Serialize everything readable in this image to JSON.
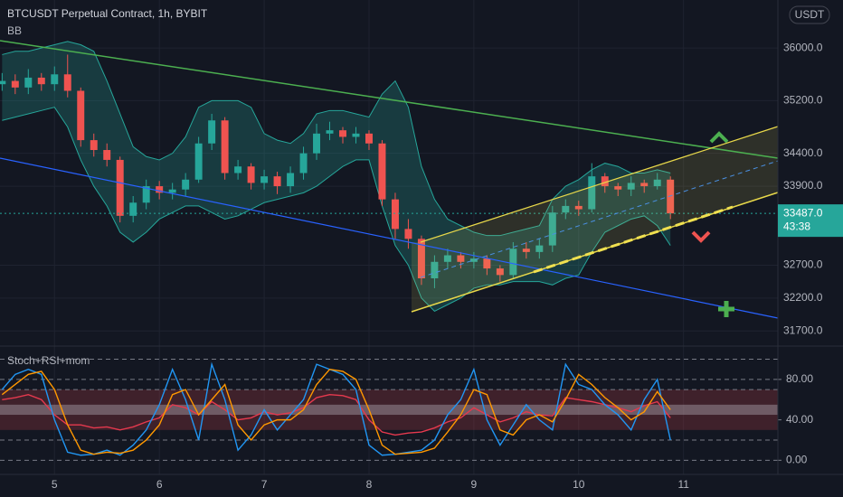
{
  "header": {
    "title": "BTCUSDT Perpetual Contract, 1h, BYBIT",
    "indicator": "BB",
    "currency": "USDT"
  },
  "chart_data": [
    {
      "type": "candlestick",
      "x": [
        4.5,
        4.625,
        4.75,
        4.875,
        5.0,
        5.125,
        5.25,
        5.375,
        5.5,
        5.625,
        5.75,
        5.875,
        6.0,
        6.125,
        6.25,
        6.375,
        6.5,
        6.625,
        6.75,
        6.875,
        7.0,
        7.125,
        7.25,
        7.375,
        7.5,
        7.625,
        7.75,
        7.875,
        8.0,
        8.125,
        8.25,
        8.375,
        8.5,
        8.625,
        8.75,
        8.875,
        9.0,
        9.125,
        9.25,
        9.375,
        9.5,
        9.625,
        9.75,
        9.875,
        10.0,
        10.125,
        10.25,
        10.375,
        10.5,
        10.625,
        10.75,
        10.875
      ],
      "open": [
        35450,
        35500,
        35400,
        35550,
        35450,
        35600,
        35350,
        34600,
        34450,
        34300,
        33450,
        33650,
        33900,
        33800,
        33850,
        34000,
        34550,
        34900,
        34100,
        34200,
        33950,
        34050,
        33900,
        34100,
        34400,
        34700,
        34750,
        34650,
        34700,
        34550,
        33700,
        33250,
        33100,
        32500,
        32750,
        32850,
        32750,
        32800,
        32650,
        32550,
        32950,
        32900,
        33000,
        33500,
        33600,
        33550,
        34050,
        33900,
        33850,
        33950,
        33900,
        34000
      ],
      "high": [
        35620,
        35600,
        35680,
        35620,
        35720,
        35900,
        35400,
        34700,
        34550,
        34350,
        33750,
        34000,
        33980,
        33950,
        34100,
        34650,
        35000,
        34950,
        34300,
        34250,
        34150,
        34120,
        34200,
        34500,
        34850,
        34880,
        34800,
        34800,
        34750,
        34600,
        33800,
        33400,
        33150,
        32850,
        32950,
        32900,
        32900,
        32850,
        32700,
        33050,
        33050,
        33100,
        33600,
        33700,
        33680,
        34250,
        34100,
        33950,
        34050,
        34000,
        34100,
        34050
      ],
      "low": [
        35350,
        35300,
        35300,
        35350,
        35350,
        35250,
        34500,
        34350,
        34200,
        33350,
        33350,
        33550,
        33700,
        33700,
        33750,
        33950,
        34450,
        34000,
        34000,
        33850,
        33850,
        33780,
        33800,
        34000,
        34300,
        34600,
        34550,
        34550,
        34450,
        33600,
        33100,
        32950,
        32400,
        32350,
        32650,
        32650,
        32650,
        32550,
        32450,
        32500,
        32800,
        32800,
        32900,
        33400,
        33450,
        33500,
        33800,
        33750,
        33750,
        33800,
        33850,
        33400
      ],
      "close": [
        35500,
        35400,
        35550,
        35450,
        35600,
        35350,
        34600,
        34450,
        34300,
        33450,
        33650,
        33900,
        33800,
        33850,
        34000,
        34550,
        34900,
        34100,
        34200,
        33950,
        34050,
        33900,
        34100,
        34400,
        34700,
        34750,
        34650,
        34700,
        34550,
        33700,
        33250,
        33100,
        32500,
        32750,
        32850,
        32750,
        32800,
        32650,
        32550,
        32950,
        32900,
        33000,
        33500,
        33600,
        33550,
        34050,
        33900,
        33850,
        33950,
        33900,
        34000,
        33487
      ],
      "bb_upper": [
        35900,
        35950,
        35950,
        36000,
        36050,
        36100,
        36050,
        35950,
        35500,
        35000,
        34500,
        34350,
        34300,
        34400,
        34650,
        35100,
        35200,
        35200,
        35200,
        35100,
        34700,
        34600,
        34550,
        34700,
        35000,
        35050,
        35050,
        35000,
        34950,
        35300,
        35500,
        35100,
        34200,
        33700,
        33400,
        33300,
        33200,
        33150,
        33150,
        33200,
        33250,
        33300,
        33700,
        33900,
        34000,
        34150,
        34250,
        34200,
        34100,
        34100,
        34150,
        34100
      ],
      "bb_lower": [
        34900,
        34950,
        35000,
        35050,
        35100,
        34800,
        34300,
        33900,
        33600,
        33200,
        33050,
        33200,
        33400,
        33500,
        33600,
        33600,
        33500,
        33400,
        33450,
        33550,
        33650,
        33700,
        33750,
        33800,
        33900,
        34050,
        34200,
        34300,
        34300,
        33600,
        33000,
        32700,
        32200,
        32000,
        32100,
        32200,
        32350,
        32400,
        32400,
        32450,
        32450,
        32450,
        32400,
        32500,
        32550,
        32900,
        33200,
        33300,
        33400,
        33450,
        33300,
        33000
      ],
      "up_color": "#26a69a",
      "down_color": "#ef5350",
      "band_color": "#26a69a",
      "last_price": 33487,
      "last_price_label": "33487.0",
      "countdown": "43:38",
      "xlim": [
        4.48,
        11.9
      ],
      "xticks": [
        5,
        6,
        7,
        8,
        9,
        10,
        11
      ],
      "ylim": [
        31470,
        36730
      ],
      "yticks": [
        {
          "value": 31700,
          "label": "31700.0"
        },
        {
          "value": 32200,
          "label": "32200.0"
        },
        {
          "value": 32700,
          "label": "32700.0"
        },
        {
          "value": 33900,
          "label": "33900.0"
        },
        {
          "value": 34400,
          "label": "34400.0"
        },
        {
          "value": 35200,
          "label": "35200.0"
        },
        {
          "value": 36000,
          "label": "36000.0"
        }
      ],
      "grid": true
    },
    {
      "type": "line",
      "title": "Stoch+RSI+mom",
      "x": [
        4.5,
        4.625,
        4.75,
        4.875,
        5.0,
        5.125,
        5.25,
        5.375,
        5.5,
        5.625,
        5.75,
        5.875,
        6.0,
        6.125,
        6.25,
        6.375,
        6.5,
        6.625,
        6.75,
        6.875,
        7.0,
        7.125,
        7.25,
        7.375,
        7.5,
        7.625,
        7.75,
        7.875,
        8.0,
        8.125,
        8.25,
        8.375,
        8.5,
        8.625,
        8.75,
        8.875,
        9.0,
        9.125,
        9.25,
        9.375,
        9.5,
        9.625,
        9.75,
        9.875,
        10.0,
        10.125,
        10.25,
        10.375,
        10.5,
        10.625,
        10.75,
        10.875
      ],
      "series": [
        {
          "color": "#e5394e",
          "values": [
            60,
            62,
            65,
            60,
            45,
            35,
            35,
            32,
            33,
            30,
            33,
            38,
            42,
            55,
            52,
            45,
            58,
            50,
            40,
            42,
            48,
            45,
            47,
            52,
            62,
            65,
            64,
            60,
            40,
            28,
            25,
            27,
            28,
            32,
            38,
            42,
            52,
            45,
            38,
            42,
            48,
            45,
            44,
            62,
            60,
            58,
            55,
            52,
            48,
            54,
            58,
            42
          ]
        },
        {
          "color": "#2196f3",
          "values": [
            70,
            85,
            90,
            85,
            40,
            8,
            5,
            6,
            10,
            5,
            15,
            30,
            55,
            90,
            60,
            20,
            95,
            60,
            10,
            25,
            50,
            30,
            45,
            60,
            95,
            90,
            85,
            70,
            15,
            5,
            6,
            8,
            10,
            20,
            45,
            60,
            90,
            40,
            15,
            35,
            55,
            40,
            30,
            95,
            75,
            70,
            55,
            45,
            30,
            60,
            80,
            20
          ]
        },
        {
          "color": "#ff9800",
          "values": [
            65,
            75,
            85,
            88,
            70,
            35,
            10,
            6,
            8,
            7,
            10,
            20,
            35,
            65,
            70,
            45,
            60,
            75,
            35,
            20,
            35,
            40,
            40,
            50,
            75,
            90,
            88,
            80,
            50,
            15,
            6,
            7,
            8,
            12,
            28,
            45,
            70,
            65,
            30,
            25,
            40,
            45,
            38,
            60,
            85,
            75,
            62,
            52,
            40,
            48,
            68,
            50
          ]
        }
      ],
      "bands": [
        {
          "from": 30,
          "to": 70,
          "color": "rgba(178,60,70,0.28)"
        },
        {
          "from": 45,
          "to": 55,
          "color": "rgba(200,200,210,0.35)"
        }
      ],
      "levels": [
        100,
        80,
        70,
        20,
        0
      ],
      "xlim": [
        4.48,
        11.9
      ],
      "ylim": [
        -14,
        113
      ],
      "yticks": [
        {
          "value": 0,
          "label": "0.00"
        },
        {
          "value": 40,
          "label": "40.00"
        },
        {
          "value": 80,
          "label": "80.00"
        }
      ]
    }
  ]
}
